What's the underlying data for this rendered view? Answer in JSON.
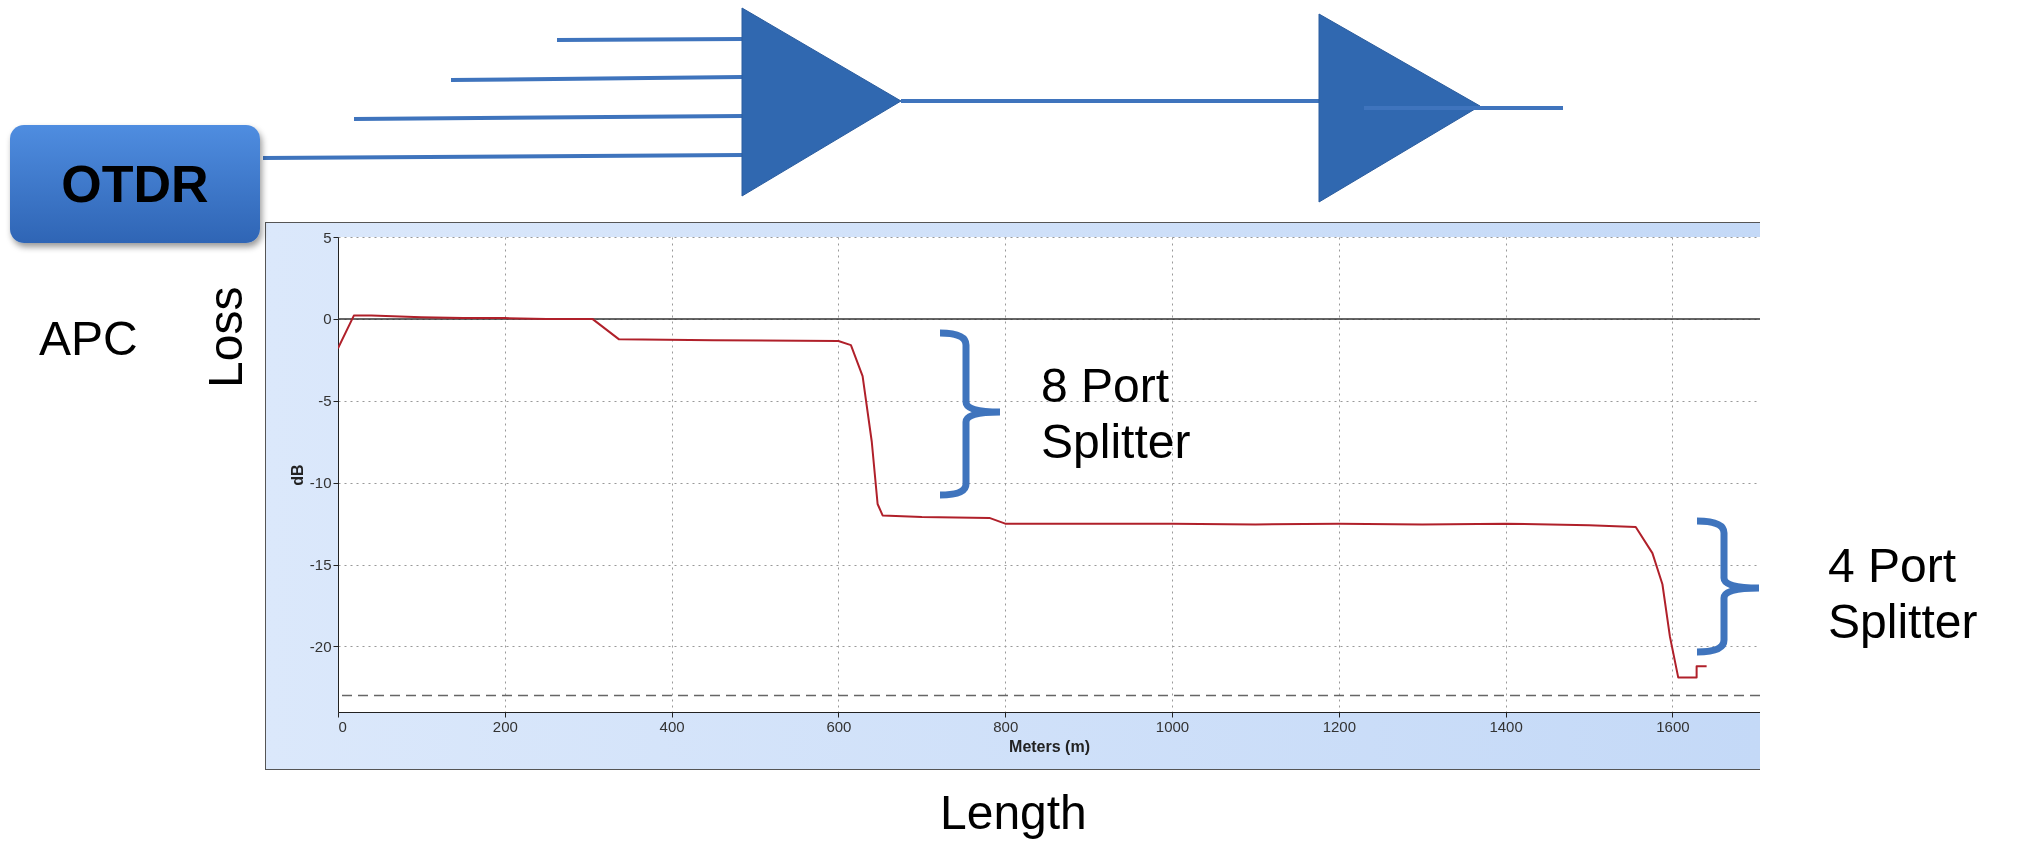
{
  "chart_data": {
    "type": "line",
    "xlabel": "Meters (m)",
    "ylabel": "dB",
    "xlim": [
      0,
      1705
    ],
    "ylim": [
      -24,
      5
    ],
    "xticks": [
      0,
      200,
      400,
      600,
      800,
      1000,
      1200,
      1400,
      1600
    ],
    "yticks": [
      5,
      0,
      -5,
      -10,
      -15,
      -20
    ],
    "grid": true,
    "ref_lines": [
      {
        "axis": "y",
        "value": 0,
        "color": "#333333"
      },
      {
        "axis": "y",
        "value": -23,
        "color": "#666666",
        "line_style": "dashed"
      }
    ],
    "series": [
      {
        "color": "#b0202a",
        "x": [
          0,
          19,
          40,
          100,
          150,
          200,
          250,
          305,
          337,
          450,
          600,
          615,
          629,
          640,
          647,
          653,
          700,
          781,
          800,
          900,
          1000,
          1100,
          1200,
          1300,
          1400,
          1500,
          1556,
          1576,
          1588,
          1597,
          1607,
          1629,
          1629,
          1641
        ],
        "values": [
          -1.8,
          0.2,
          0.2,
          0.1,
          0.05,
          0.05,
          0,
          0,
          -1.25,
          -1.3,
          -1.35,
          -1.6,
          -3.5,
          -7.5,
          -11.3,
          -12,
          -12.1,
          -12.15,
          -12.5,
          -12.5,
          -12.5,
          -12.55,
          -12.5,
          -12.55,
          -12.5,
          -12.6,
          -12.7,
          -14.3,
          -16.2,
          -19.4,
          -21.9,
          -21.9,
          -21.2,
          -21.2
        ]
      }
    ],
    "annotations": [
      "OTDR",
      "APC",
      "Loss",
      "Length",
      "8 Port Splitter",
      "4 Port Splitter"
    ]
  }
}
